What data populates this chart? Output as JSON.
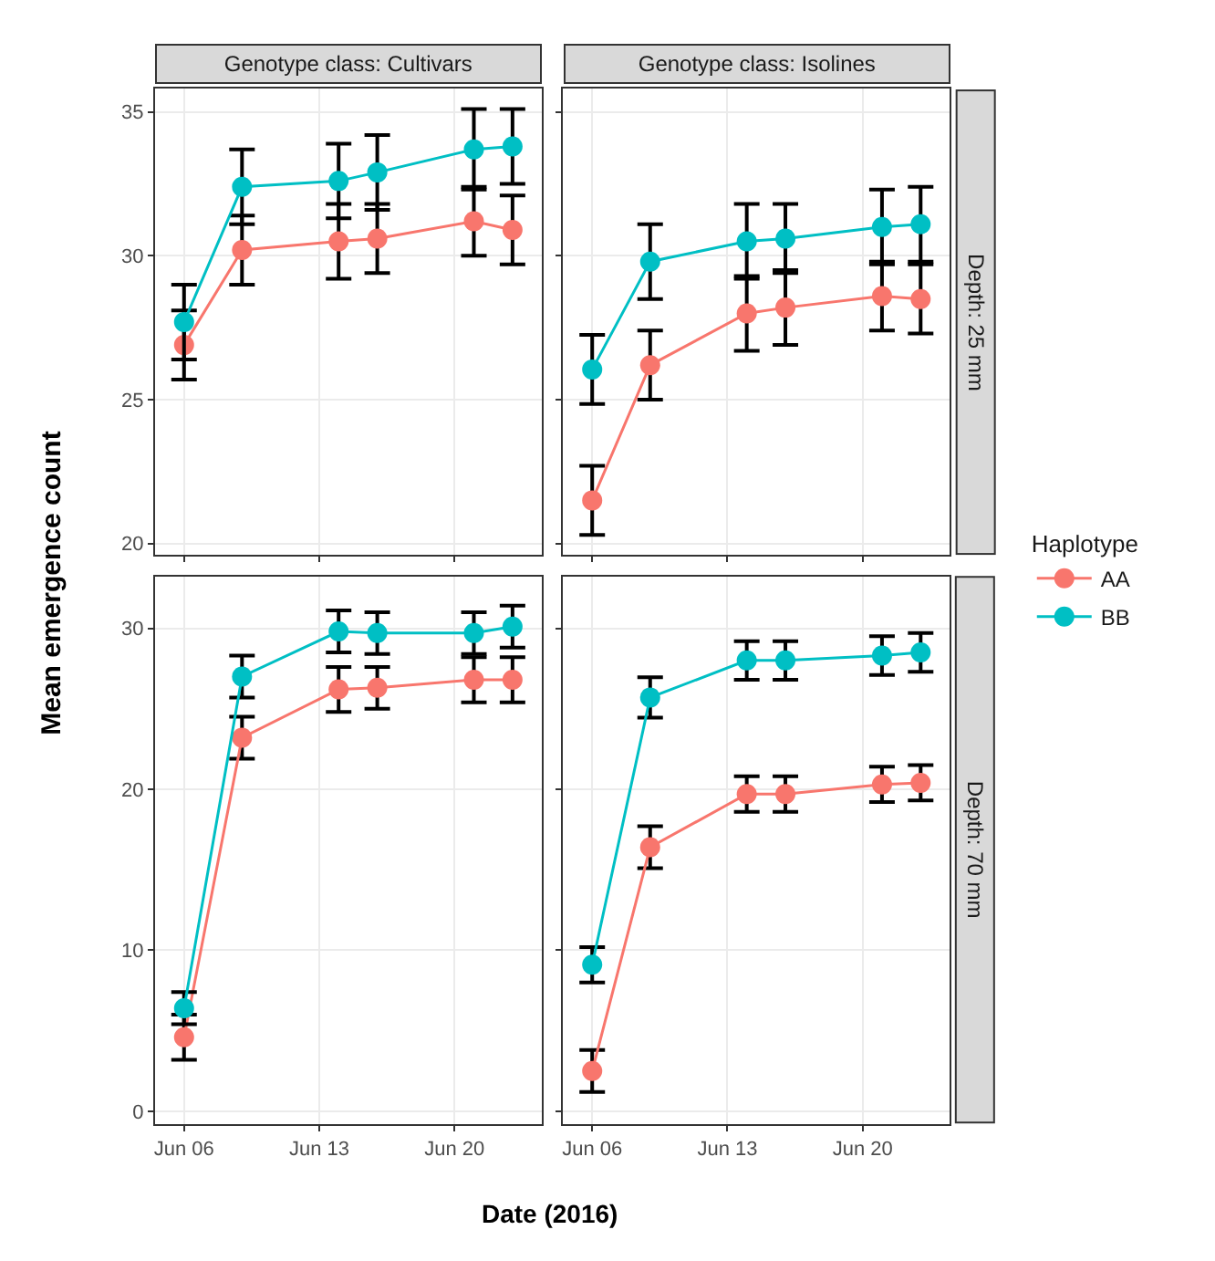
{
  "chart_data": [
    {
      "type": "line",
      "title": "Genotype class: Cultivars",
      "ylabel": "Mean emergence count",
      "x": [
        "2016-06-06",
        "2016-06-09",
        "2016-06-14",
        "2016-06-16",
        "2016-06-21",
        "2016-06-23"
      ],
      "xlim": [
        "2016-06-04T12:00",
        "2016-06-24T12:00"
      ],
      "xticks": [
        {
          "value": "2016-06-06",
          "label": "Jun 06"
        },
        {
          "value": "2016-06-13",
          "label": "Jun 13"
        },
        {
          "value": "2016-06-20",
          "label": "Jun 20"
        }
      ],
      "ylim": [
        19.6,
        35.8
      ],
      "yticks": [
        20,
        25,
        30,
        35
      ],
      "legend": "right",
      "legend_title": "Haplotype",
      "tick_labels": "y",
      "grid": true,
      "marker": "circle",
      "series": [
        {
          "name": "AA",
          "color": "#f8766d",
          "values": [
            26.9,
            30.2,
            30.5,
            30.6,
            31.2,
            30.9
          ],
          "errors": [
            1.2,
            1.2,
            1.3,
            1.2,
            1.2,
            1.2
          ]
        },
        {
          "name": "BB",
          "color": "#00bfc4",
          "values": [
            27.7,
            32.4,
            32.6,
            32.9,
            33.7,
            33.8
          ],
          "errors": [
            1.3,
            1.3,
            1.3,
            1.3,
            1.4,
            1.3
          ]
        }
      ]
    },
    {
      "type": "line",
      "title": "Genotype class: Isolines",
      "legend": "right",
      "x": [
        "2016-06-06",
        "2016-06-09",
        "2016-06-14",
        "2016-06-16",
        "2016-06-21",
        "2016-06-23"
      ],
      "xlim": [
        "2016-06-04T12:00",
        "2016-06-24T12:00"
      ],
      "xticks": [
        {
          "value": "2016-06-06",
          "label": "Jun 06"
        },
        {
          "value": "2016-06-13",
          "label": "Jun 13"
        },
        {
          "value": "2016-06-20",
          "label": "Jun 20"
        }
      ],
      "ylim": [
        19.6,
        35.8
      ],
      "yticks": [
        20,
        25,
        30,
        35
      ],
      "tick_labels": false,
      "grid": true,
      "marker": "circle",
      "annotations": [
        "Depth: 25 mm"
      ],
      "series": [
        {
          "name": "AA",
          "color": "#f8766d",
          "values": [
            21.5,
            26.2,
            28.0,
            28.2,
            28.6,
            28.5
          ],
          "errors": [
            1.2,
            1.2,
            1.3,
            1.3,
            1.2,
            1.2
          ]
        },
        {
          "name": "BB",
          "color": "#00bfc4",
          "values": [
            26.05,
            29.8,
            30.5,
            30.6,
            31.0,
            31.1
          ],
          "errors": [
            1.2,
            1.3,
            1.3,
            1.2,
            1.3,
            1.3
          ]
        }
      ]
    },
    {
      "type": "line",
      "xlabel": "Date (2016)",
      "x": [
        "2016-06-06",
        "2016-06-09",
        "2016-06-14",
        "2016-06-16",
        "2016-06-21",
        "2016-06-23"
      ],
      "xlim": [
        "2016-06-04T12:00",
        "2016-06-24T12:00"
      ],
      "xticks": [
        {
          "value": "2016-06-06",
          "label": "Jun 06"
        },
        {
          "value": "2016-06-13",
          "label": "Jun 13"
        },
        {
          "value": "2016-06-20",
          "label": "Jun 20"
        }
      ],
      "ylim": [
        -0.8,
        33.2
      ],
      "yticks": [
        0,
        10,
        20,
        30
      ],
      "legend": "right",
      "grid": true,
      "marker": "circle",
      "series": [
        {
          "name": "AA",
          "color": "#f8766d",
          "values": [
            4.6,
            23.2,
            26.2,
            26.3,
            26.8,
            26.8
          ],
          "errors": [
            1.4,
            1.3,
            1.4,
            1.3,
            1.4,
            1.4
          ]
        },
        {
          "name": "BB",
          "color": "#00bfc4",
          "values": [
            6.4,
            27.0,
            29.8,
            29.7,
            29.7,
            30.1
          ],
          "errors": [
            1.0,
            1.3,
            1.3,
            1.3,
            1.3,
            1.3
          ]
        }
      ]
    },
    {
      "type": "line",
      "x": [
        "2016-06-06",
        "2016-06-09",
        "2016-06-14",
        "2016-06-16",
        "2016-06-21",
        "2016-06-23"
      ],
      "xlim": [
        "2016-06-04T12:00",
        "2016-06-24T12:00"
      ],
      "xticks": [
        {
          "value": "2016-06-06",
          "label": "Jun 06"
        },
        {
          "value": "2016-06-13",
          "label": "Jun 13"
        },
        {
          "value": "2016-06-20",
          "label": "Jun 20"
        }
      ],
      "ylim": [
        -0.8,
        33.2
      ],
      "yticks": [
        0,
        10,
        20,
        30
      ],
      "tick_labels": "x",
      "legend": "right",
      "grid": true,
      "marker": "circle",
      "annotations": [
        "Depth: 70 mm"
      ],
      "series": [
        {
          "name": "AA",
          "color": "#f8766d",
          "values": [
            2.5,
            16.4,
            19.7,
            19.7,
            20.3,
            20.4
          ],
          "errors": [
            1.3,
            1.3,
            1.1,
            1.1,
            1.1,
            1.1
          ]
        },
        {
          "name": "BB",
          "color": "#00bfc4",
          "values": [
            9.1,
            25.7,
            28.0,
            28.0,
            28.3,
            28.5
          ],
          "errors": [
            1.1,
            1.25,
            1.2,
            1.2,
            1.2,
            1.2
          ]
        }
      ]
    }
  ]
}
